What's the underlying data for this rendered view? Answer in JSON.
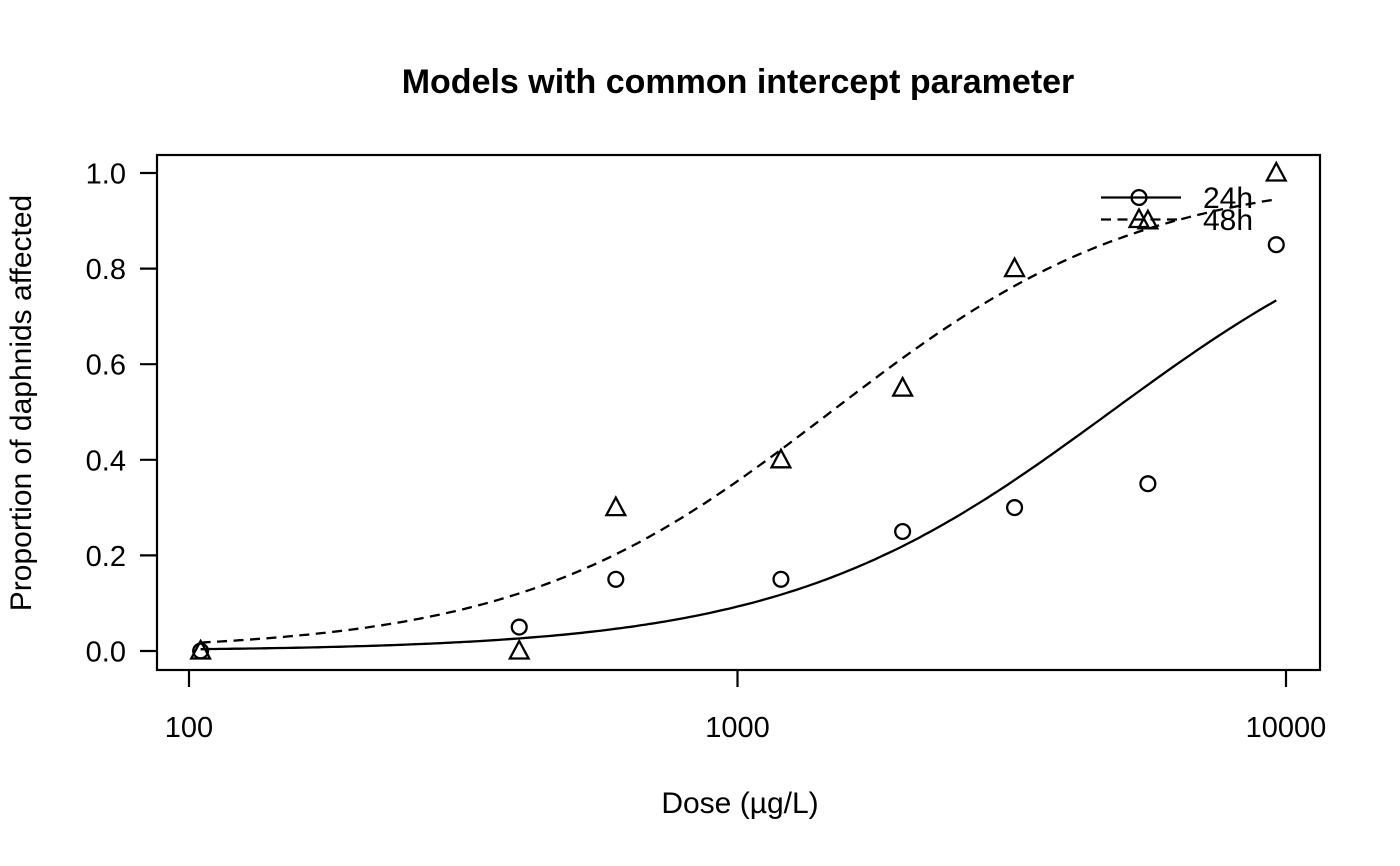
{
  "chart_data": {
    "type": "scatter",
    "title": "Models with common intercept parameter",
    "xlabel": "Dose (µg/L)",
    "ylabel": "Proportion of daphnids affected",
    "x_scale": "log10",
    "xlim": [
      87,
      11500
    ],
    "ylim": [
      -0.04,
      1.04
    ],
    "x_ticks": [
      100,
      1000,
      10000
    ],
    "x_tick_labels": [
      "100",
      "1000",
      "10000"
    ],
    "y_ticks": [
      0.0,
      0.2,
      0.4,
      0.6,
      0.8,
      1.0
    ],
    "y_tick_labels": [
      "0.0",
      "0.2",
      "0.4",
      "0.6",
      "0.8",
      "1.0"
    ],
    "grid": false,
    "colors": {
      "foreground": "#000000",
      "background": "#ffffff"
    },
    "legend": {
      "position": "top-right",
      "entries": [
        {
          "label": "24h",
          "marker": "circle",
          "line": "solid"
        },
        {
          "label": "48h",
          "marker": "triangle",
          "line": "dashed"
        }
      ]
    },
    "series": [
      {
        "name": "24h",
        "marker": "circle",
        "line": "solid",
        "points": [
          [
            105,
            0.0
          ],
          [
            400,
            0.05
          ],
          [
            600,
            0.15
          ],
          [
            1200,
            0.15
          ],
          [
            2000,
            0.25
          ],
          [
            3200,
            0.3
          ],
          [
            5600,
            0.35
          ],
          [
            9600,
            0.85
          ]
        ],
        "fit_curve": {
          "model": "logistic_log10dose",
          "slope": 3.35,
          "log10_ed50": 3.68,
          "dose_range": [
            105,
            9600
          ]
        }
      },
      {
        "name": "48h",
        "marker": "triangle",
        "line": "dashed",
        "points": [
          [
            105,
            0.0
          ],
          [
            400,
            0.0
          ],
          [
            600,
            0.3
          ],
          [
            1200,
            0.4
          ],
          [
            2000,
            0.55
          ],
          [
            3200,
            0.8
          ],
          [
            5600,
            0.9
          ],
          [
            9600,
            1.0
          ]
        ],
        "fit_curve": {
          "model": "logistic_log10dose",
          "slope": 3.5,
          "log10_ed50": 3.17,
          "dose_range": [
            105,
            9600
          ]
        }
      }
    ]
  }
}
